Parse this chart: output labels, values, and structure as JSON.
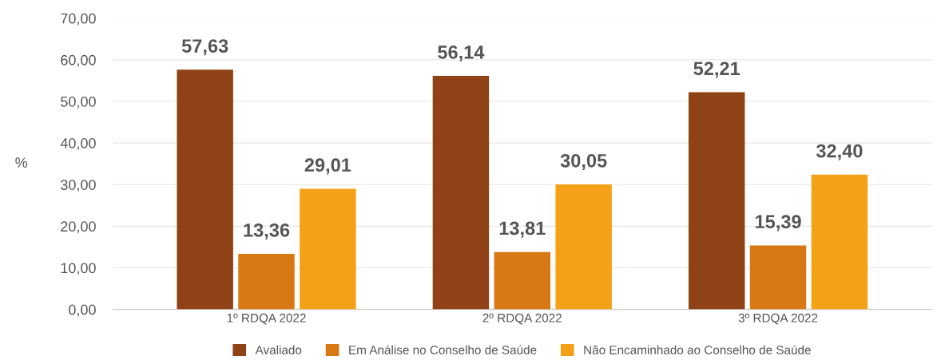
{
  "chart_data": {
    "type": "bar",
    "ylabel": "%",
    "categories": [
      "1º RDQA 2022",
      "2º RDQA 2022",
      "3º RDQA 2022"
    ],
    "series": [
      {
        "name": "Avaliado",
        "color": "#8f4215",
        "values": [
          57.63,
          56.14,
          52.21
        ],
        "value_labels": [
          "57,63",
          "56,14",
          "52,21"
        ]
      },
      {
        "name": "Em Análise no Conselho de Saúde",
        "color": "#d87815",
        "values": [
          13.36,
          13.81,
          15.39
        ],
        "value_labels": [
          "13,36",
          "13,81",
          "15,39"
        ]
      },
      {
        "name": "Não Encaminhado ao Conselho de Saúde",
        "color": "#f4a118",
        "values": [
          29.01,
          30.05,
          32.4
        ],
        "value_labels": [
          "29,01",
          "30,05",
          "32,40"
        ]
      }
    ],
    "ylim": [
      0,
      70
    ],
    "yticks": [
      {
        "value": 0,
        "label": "0,00"
      },
      {
        "value": 10,
        "label": "10,00"
      },
      {
        "value": 20,
        "label": "20,00"
      },
      {
        "value": 30,
        "label": "30,00"
      },
      {
        "value": 40,
        "label": "40,00"
      },
      {
        "value": 50,
        "label": "50,00"
      },
      {
        "value": 60,
        "label": "60,00"
      },
      {
        "value": 70,
        "label": "70,00"
      }
    ],
    "grid": "y",
    "legend": "bottom"
  }
}
